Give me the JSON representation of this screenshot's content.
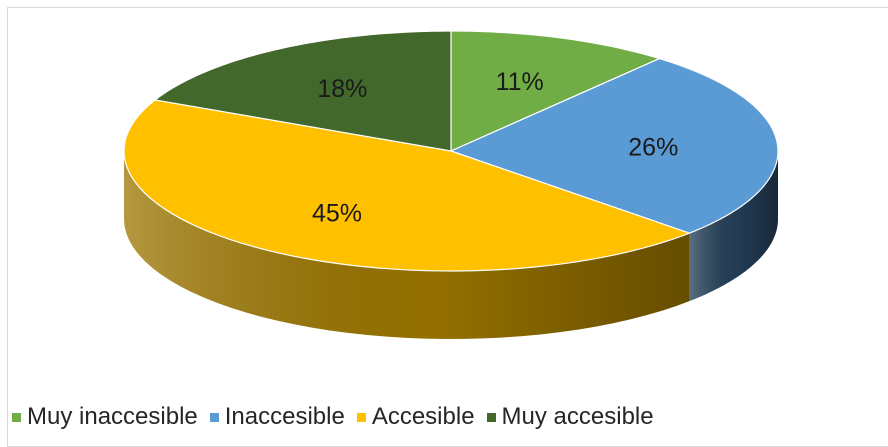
{
  "chart_data": {
    "type": "pie",
    "categories": [
      "Muy inaccesible",
      "Inaccesible",
      "Accesible",
      "Muy accesible"
    ],
    "values": [
      11,
      26,
      45,
      18
    ],
    "labels": [
      "11%",
      "26%",
      "45%",
      "18%"
    ],
    "colors": [
      "#70ad47",
      "#5b9bd5",
      "#ffc000",
      "#43682b"
    ],
    "side_colors": [
      "#4e7a31",
      "#243f58",
      "#9c7600",
      "#2b421c"
    ],
    "legend_position": "bottom",
    "style": "3d-pie"
  }
}
